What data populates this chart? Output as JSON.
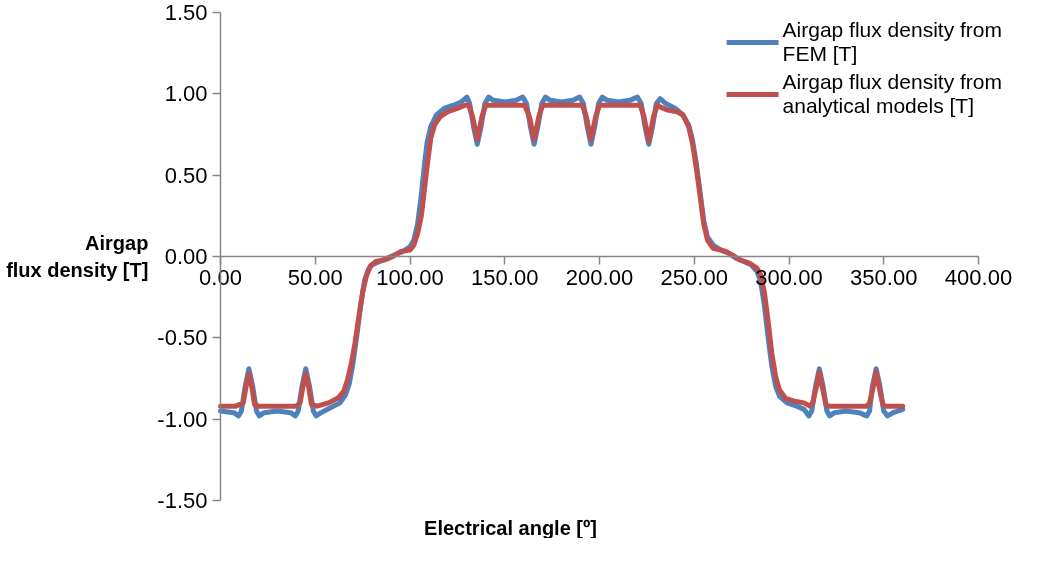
{
  "chart_data": {
    "type": "line",
    "xlabel": "Electrical angle [º]",
    "ylabel": "Airgap flux density [T]",
    "xlim": [
      0,
      400
    ],
    "xticks": [
      {
        "value": 0,
        "label": "0.00"
      },
      {
        "value": 50,
        "label": "50.00"
      },
      {
        "value": 100,
        "label": "100.00"
      },
      {
        "value": 150,
        "label": "150.00"
      },
      {
        "value": 200,
        "label": "200.00"
      },
      {
        "value": 250,
        "label": "250.00"
      },
      {
        "value": 300,
        "label": "300.00"
      },
      {
        "value": 350,
        "label": "350.00"
      },
      {
        "value": 400,
        "label": "400.00"
      }
    ],
    "ylim": [
      -1.5,
      1.5
    ],
    "yticks": [
      {
        "value": -1.5,
        "label": "-1.50"
      },
      {
        "value": -1,
        "label": "-1.00"
      },
      {
        "value": -0.5,
        "label": "-0.50"
      },
      {
        "value": 0,
        "label": "0.00"
      },
      {
        "value": 0.5,
        "label": "0.50"
      },
      {
        "value": 1,
        "label": "1.00"
      },
      {
        "value": 1.5,
        "label": "1.50"
      }
    ],
    "grid": false,
    "legend": "top right",
    "line_style": "solid",
    "series": [
      {
        "name": "Airgap flux density from FEM [T]",
        "color": "#4f81bd",
        "x": [
          0,
          7,
          9.5,
          11,
          13,
          15,
          17,
          19,
          20.5,
          23,
          30,
          37,
          39.5,
          41,
          43,
          45,
          47,
          49,
          50.5,
          53,
          58,
          63,
          66,
          68,
          70,
          72,
          74,
          76,
          78,
          80,
          84,
          88,
          92,
          96,
          100,
          102,
          104,
          106,
          107.5,
          109,
          111,
          114,
          118,
          123,
          127,
          130,
          131.5,
          133.5,
          135.5,
          137.5,
          139.5,
          141.5,
          144,
          150,
          156,
          159.5,
          161.5,
          163.5,
          165.5,
          167.5,
          169.5,
          171.5,
          174,
          180,
          186,
          189.5,
          191.5,
          193.5,
          195.5,
          197.5,
          199.5,
          201.5,
          204,
          210,
          216,
          220,
          222,
          224,
          226,
          228,
          230,
          232,
          235,
          240,
          244,
          247,
          249,
          251,
          253,
          255,
          257,
          260,
          264,
          268,
          272,
          276,
          280,
          283,
          285,
          287,
          289,
          291,
          293,
          295,
          299,
          304,
          308,
          310.5,
          312,
          314,
          316,
          318,
          320,
          321.5,
          324,
          330,
          337,
          341,
          342.5,
          344,
          346,
          348,
          350,
          352,
          355,
          360
        ],
        "values": [
          -0.95,
          -0.96,
          -0.98,
          -0.95,
          -0.8,
          -0.69,
          -0.8,
          -0.95,
          -0.98,
          -0.96,
          -0.95,
          -0.96,
          -0.98,
          -0.95,
          -0.8,
          -0.69,
          -0.8,
          -0.95,
          -0.98,
          -0.96,
          -0.93,
          -0.9,
          -0.85,
          -0.78,
          -0.65,
          -0.48,
          -0.3,
          -0.15,
          -0.08,
          -0.05,
          -0.03,
          -0.01,
          0.01,
          0.03,
          0.06,
          0.1,
          0.2,
          0.38,
          0.55,
          0.7,
          0.8,
          0.87,
          0.91,
          0.93,
          0.95,
          0.98,
          0.94,
          0.8,
          0.69,
          0.8,
          0.94,
          0.98,
          0.96,
          0.95,
          0.96,
          0.98,
          0.94,
          0.8,
          0.69,
          0.8,
          0.94,
          0.98,
          0.96,
          0.95,
          0.96,
          0.98,
          0.94,
          0.8,
          0.69,
          0.8,
          0.94,
          0.98,
          0.96,
          0.95,
          0.96,
          0.98,
          0.94,
          0.8,
          0.69,
          0.8,
          0.94,
          0.97,
          0.94,
          0.91,
          0.87,
          0.81,
          0.72,
          0.58,
          0.4,
          0.22,
          0.12,
          0.07,
          0.04,
          0.02,
          -0.01,
          -0.03,
          -0.05,
          -0.09,
          -0.15,
          -0.3,
          -0.5,
          -0.68,
          -0.8,
          -0.86,
          -0.9,
          -0.92,
          -0.94,
          -0.98,
          -0.95,
          -0.8,
          -0.69,
          -0.8,
          -0.95,
          -0.98,
          -0.96,
          -0.95,
          -0.96,
          -0.98,
          -0.95,
          -0.8,
          -0.69,
          -0.8,
          -0.95,
          -0.98,
          -0.96,
          -0.94
        ]
      },
      {
        "name": "Airgap flux density from analytical models [T]",
        "color": "#c0504d",
        "x": [
          0,
          8,
          12,
          13.5,
          15,
          16.5,
          18,
          20,
          30,
          40,
          42,
          43.5,
          45,
          46.5,
          48,
          51,
          57,
          62,
          65,
          67,
          69,
          71,
          73,
          75,
          77,
          79,
          82,
          87,
          91,
          95,
          100,
          102,
          104,
          106,
          107.5,
          109,
          111,
          113,
          116,
          120,
          125,
          129,
          131,
          133,
          135.5,
          138,
          140,
          160.5,
          163,
          165.5,
          168,
          170,
          191,
          193,
          195.5,
          198,
          200,
          221.5,
          223.5,
          226,
          228.5,
          230.5,
          232,
          236,
          241,
          244,
          247,
          249,
          251,
          253,
          255,
          257,
          260,
          264,
          267,
          270,
          274,
          279,
          283,
          285,
          287,
          289,
          291,
          293,
          295,
          298,
          303,
          308,
          311,
          312.5,
          314.5,
          316,
          317.5,
          319.5,
          321,
          330,
          341,
          342.5,
          344.5,
          346,
          347.5,
          349.5,
          351,
          360
        ],
        "values": [
          -0.92,
          -0.92,
          -0.9,
          -0.8,
          -0.72,
          -0.8,
          -0.91,
          -0.92,
          -0.92,
          -0.92,
          -0.9,
          -0.8,
          -0.72,
          -0.8,
          -0.91,
          -0.92,
          -0.9,
          -0.87,
          -0.83,
          -0.76,
          -0.66,
          -0.53,
          -0.37,
          -0.22,
          -0.12,
          -0.06,
          -0.03,
          -0.02,
          0.0,
          0.03,
          0.04,
          0.07,
          0.14,
          0.25,
          0.4,
          0.55,
          0.73,
          0.81,
          0.86,
          0.89,
          0.91,
          0.93,
          0.93,
          0.86,
          0.72,
          0.86,
          0.93,
          0.93,
          0.86,
          0.72,
          0.86,
          0.93,
          0.93,
          0.86,
          0.72,
          0.86,
          0.93,
          0.93,
          0.86,
          0.71,
          0.86,
          0.93,
          0.92,
          0.9,
          0.89,
          0.87,
          0.8,
          0.7,
          0.55,
          0.38,
          0.2,
          0.1,
          0.05,
          0.04,
          0.03,
          0.01,
          -0.02,
          -0.04,
          -0.07,
          -0.11,
          -0.22,
          -0.4,
          -0.6,
          -0.74,
          -0.82,
          -0.87,
          -0.89,
          -0.9,
          -0.92,
          -0.9,
          -0.8,
          -0.71,
          -0.8,
          -0.91,
          -0.92,
          -0.92,
          -0.92,
          -0.9,
          -0.8,
          -0.71,
          -0.8,
          -0.91,
          -0.92,
          -0.92
        ]
      }
    ]
  }
}
